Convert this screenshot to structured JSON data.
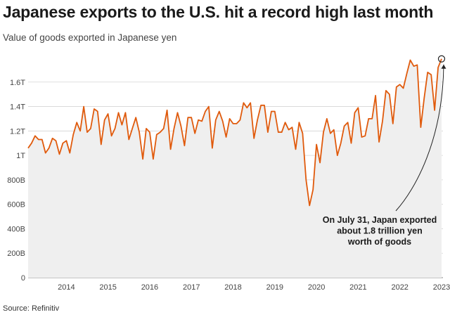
{
  "chart_data": {
    "type": "area",
    "title": "Japanese exports to the U.S. hit a record high last month",
    "subtitle": "Value of goods exported in Japanese yen",
    "source": "Source: Refinitiv",
    "xlabel": "",
    "ylabel": "",
    "ylim": [
      0,
      1800000000000
    ],
    "y_ticks": [
      0,
      200000000000,
      400000000000,
      600000000000,
      800000000000,
      1000000000000,
      1200000000000,
      1400000000000,
      1600000000000
    ],
    "y_tick_labels": [
      "0",
      "200B",
      "400B",
      "600B",
      "800B",
      "1T",
      "1.2T",
      "1.4T",
      "1.6T"
    ],
    "x_tick_labels": [
      "2014",
      "2015",
      "2016",
      "2017",
      "2018",
      "2019",
      "2020",
      "2021",
      "2022",
      "2023"
    ],
    "x_start": "2013-08",
    "x_end": "2023-07",
    "grid": true,
    "line_color": "#e05a0c",
    "area_color": "#efefef",
    "series": [
      {
        "name": "",
        "x": [
          "2013-08",
          "2013-09",
          "2013-10",
          "2013-11",
          "2013-12",
          "2014-01",
          "2014-02",
          "2014-03",
          "2014-04",
          "2014-05",
          "2014-06",
          "2014-07",
          "2014-08",
          "2014-09",
          "2014-10",
          "2014-11",
          "2014-12",
          "2015-01",
          "2015-02",
          "2015-03",
          "2015-04",
          "2015-05",
          "2015-06",
          "2015-07",
          "2015-08",
          "2015-09",
          "2015-10",
          "2015-11",
          "2015-12",
          "2016-01",
          "2016-02",
          "2016-03",
          "2016-04",
          "2016-05",
          "2016-06",
          "2016-07",
          "2016-08",
          "2016-09",
          "2016-10",
          "2016-11",
          "2016-12",
          "2017-01",
          "2017-02",
          "2017-03",
          "2017-04",
          "2017-05",
          "2017-06",
          "2017-07",
          "2017-08",
          "2017-09",
          "2017-10",
          "2017-11",
          "2017-12",
          "2018-01",
          "2018-02",
          "2018-03",
          "2018-04",
          "2018-05",
          "2018-06",
          "2018-07",
          "2018-08",
          "2018-09",
          "2018-10",
          "2018-11",
          "2018-12",
          "2019-01",
          "2019-02",
          "2019-03",
          "2019-04",
          "2019-05",
          "2019-06",
          "2019-07",
          "2019-08",
          "2019-09",
          "2019-10",
          "2019-11",
          "2019-12",
          "2020-01",
          "2020-02",
          "2020-03",
          "2020-04",
          "2020-05",
          "2020-06",
          "2020-07",
          "2020-08",
          "2020-09",
          "2020-10",
          "2020-11",
          "2020-12",
          "2021-01",
          "2021-02",
          "2021-03",
          "2021-04",
          "2021-05",
          "2021-06",
          "2021-07",
          "2021-08",
          "2021-09",
          "2021-10",
          "2021-11",
          "2021-12",
          "2022-01",
          "2022-02",
          "2022-03",
          "2022-04",
          "2022-05",
          "2022-06",
          "2022-07",
          "2022-08",
          "2022-09",
          "2022-10",
          "2022-11",
          "2022-12",
          "2023-01",
          "2023-02",
          "2023-03",
          "2023-04",
          "2023-05",
          "2023-06",
          "2023-07"
        ],
        "values": [
          1060000000000,
          1100000000000,
          1160000000000,
          1130000000000,
          1130000000000,
          1020000000000,
          1060000000000,
          1140000000000,
          1120000000000,
          1010000000000,
          1100000000000,
          1120000000000,
          1020000000000,
          1170000000000,
          1270000000000,
          1200000000000,
          1400000000000,
          1190000000000,
          1220000000000,
          1380000000000,
          1360000000000,
          1090000000000,
          1290000000000,
          1340000000000,
          1160000000000,
          1220000000000,
          1350000000000,
          1250000000000,
          1350000000000,
          1130000000000,
          1220000000000,
          1310000000000,
          1190000000000,
          970000000000,
          1220000000000,
          1190000000000,
          970000000000,
          1170000000000,
          1190000000000,
          1220000000000,
          1370000000000,
          1050000000000,
          1220000000000,
          1350000000000,
          1240000000000,
          1080000000000,
          1310000000000,
          1310000000000,
          1180000000000,
          1290000000000,
          1280000000000,
          1360000000000,
          1400000000000,
          1060000000000,
          1290000000000,
          1360000000000,
          1280000000000,
          1150000000000,
          1300000000000,
          1260000000000,
          1260000000000,
          1290000000000,
          1430000000000,
          1390000000000,
          1430000000000,
          1140000000000,
          1290000000000,
          1410000000000,
          1410000000000,
          1190000000000,
          1360000000000,
          1360000000000,
          1190000000000,
          1190000000000,
          1270000000000,
          1210000000000,
          1230000000000,
          1050000000000,
          1270000000000,
          1180000000000,
          800000000000,
          590000000000,
          720000000000,
          1090000000000,
          940000000000,
          1190000000000,
          1300000000000,
          1180000000000,
          1210000000000,
          1000000000000,
          1100000000000,
          1240000000000,
          1270000000000,
          1100000000000,
          1350000000000,
          1390000000000,
          1150000000000,
          1160000000000,
          1300000000000,
          1300000000000,
          1490000000000,
          1110000000000,
          1280000000000,
          1530000000000,
          1500000000000,
          1260000000000,
          1560000000000,
          1580000000000,
          1550000000000,
          1670000000000,
          1780000000000,
          1730000000000,
          1740000000000,
          1230000000000,
          1470000000000,
          1680000000000,
          1660000000000,
          1370000000000,
          1720000000000,
          1790000000000
        ]
      }
    ],
    "annotations": [
      {
        "text_lines": [
          "On July 31, Japan exported",
          "about 1.8 trillion yen",
          "worth of goods"
        ],
        "x": "2023-07",
        "y": 1790000000000
      }
    ]
  }
}
